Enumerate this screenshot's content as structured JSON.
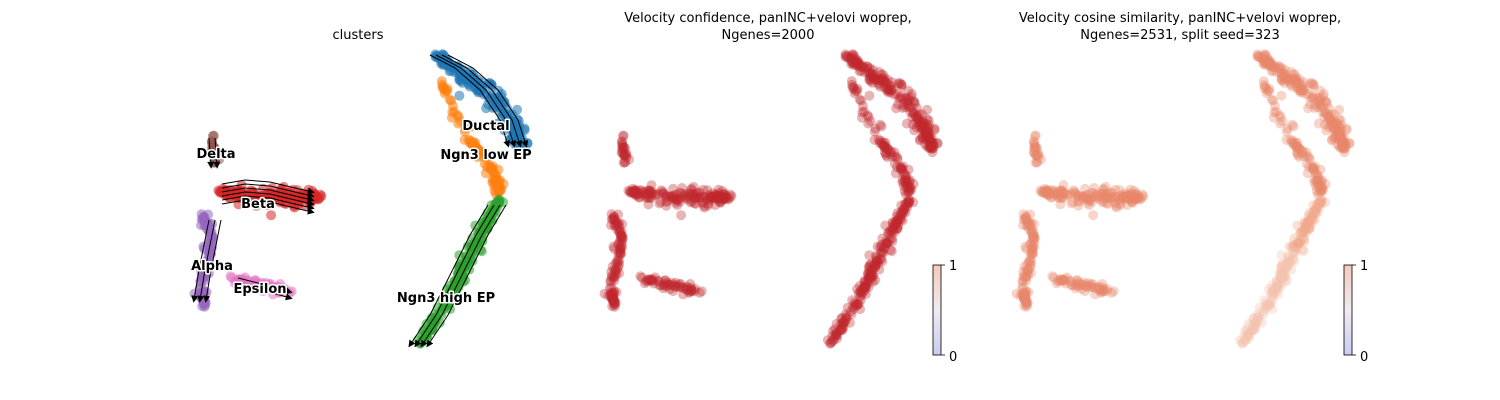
{
  "chart_data": [
    {
      "type": "scatter",
      "title": "clusters",
      "subtitle": "",
      "overlay": "velocity stream arrows",
      "legend": "on data",
      "colors": {
        "Ductal": "#1f77b4",
        "Ngn3 low EP": "#ff7f0e",
        "Ngn3 high EP": "#2ca02c",
        "Beta": "#d62728",
        "Alpha": "#9467bd",
        "Delta": "#8c564b",
        "Epsilon": "#e377c2"
      },
      "clusters": [
        "Delta",
        "Beta",
        "Alpha",
        "Epsilon",
        "Ductal",
        "Ngn3 low EP",
        "Ngn3 high EP"
      ]
    },
    {
      "type": "scatter",
      "title": "Velocity confidence, panINC+velovi woprep,",
      "subtitle": "Ngenes=2000",
      "colorbar": {
        "min": "0",
        "max": "1",
        "cmap": "coolwarm"
      },
      "point_color": "#c0272d"
    },
    {
      "type": "scatter",
      "title": "Velocity cosine similarity, panINC+velovi woprep,",
      "subtitle": "Ngenes=2531, split seed=323",
      "colorbar": {
        "min": "0",
        "max": "1",
        "cmap": "coolwarm"
      },
      "point_color": "#e8876a"
    }
  ]
}
